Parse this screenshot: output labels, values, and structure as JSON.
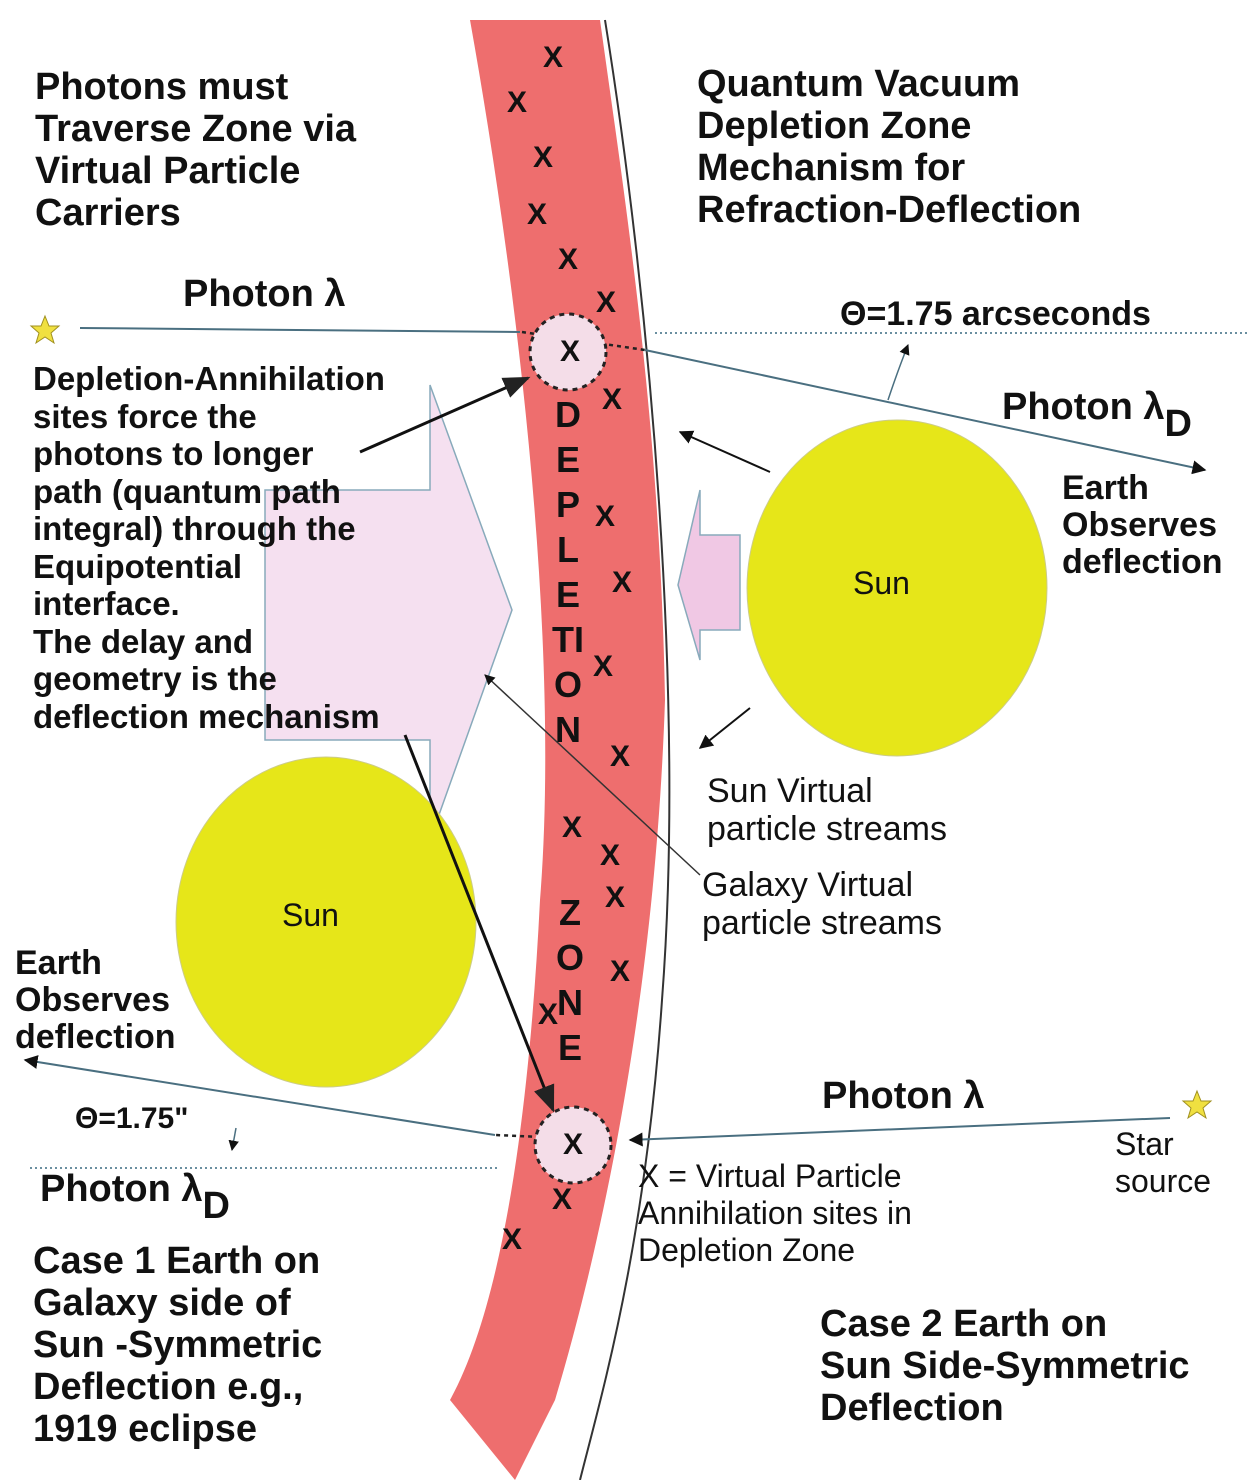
{
  "left_heading": {
    "lines": [
      "Photons must",
      "Traverse Zone via",
      "Virtual Particle",
      "Carriers"
    ]
  },
  "title": {
    "lines": [
      "Quantum Vacuum",
      "Depletion Zone",
      "Mechanism for",
      "Refraction-Deflection"
    ]
  },
  "zone_label": {
    "word1": "DEPLETION",
    "word2": "ZONE"
  },
  "site_marker": "X",
  "case2_photon_in": {
    "label": "Photon λ"
  },
  "case2_angle": "Θ=1.75 arcseconds",
  "case2_photon_out": {
    "label": "Photon λ",
    "subscript": "D"
  },
  "mechanism_note": {
    "lines": [
      "Depletion-Annihilation",
      "sites force the",
      "photons to longer",
      "path (quantum path",
      "integral) through the",
      "Equipotential",
      "interface.",
      "The delay and",
      "geometry is the",
      "deflection mechanism"
    ]
  },
  "case2_observer": {
    "lines": [
      "Earth",
      "Observes",
      "deflection"
    ]
  },
  "sun_right": "Sun",
  "sun_left": "Sun",
  "sun_streams": {
    "lines": [
      "Sun Virtual",
      "particle streams"
    ]
  },
  "galaxy_streams": {
    "lines": [
      "Galaxy Virtual",
      "particle streams"
    ]
  },
  "case1_observer": {
    "lines": [
      "Earth",
      "Observes",
      "deflection"
    ]
  },
  "case1_angle": "Θ=1.75\"",
  "case1_photon_in": {
    "label": "Photon λ"
  },
  "case1_photon_out": {
    "label": "Photon λ",
    "subscript": "D"
  },
  "star_source": {
    "lines": [
      "Star",
      "source"
    ]
  },
  "marker_legend": {
    "lines": [
      "X = Virtual Particle",
      "Annihilation sites in",
      "Depletion Zone"
    ]
  },
  "case1": {
    "lines": [
      "Case 1  Earth on",
      "Galaxy side of",
      "Sun -Symmetric",
      "Deflection e.g.,",
      "1919 eclipse"
    ]
  },
  "case2": {
    "lines": [
      "Case 2  Earth on",
      "Sun Side-Symmetric",
      "Deflection"
    ]
  }
}
